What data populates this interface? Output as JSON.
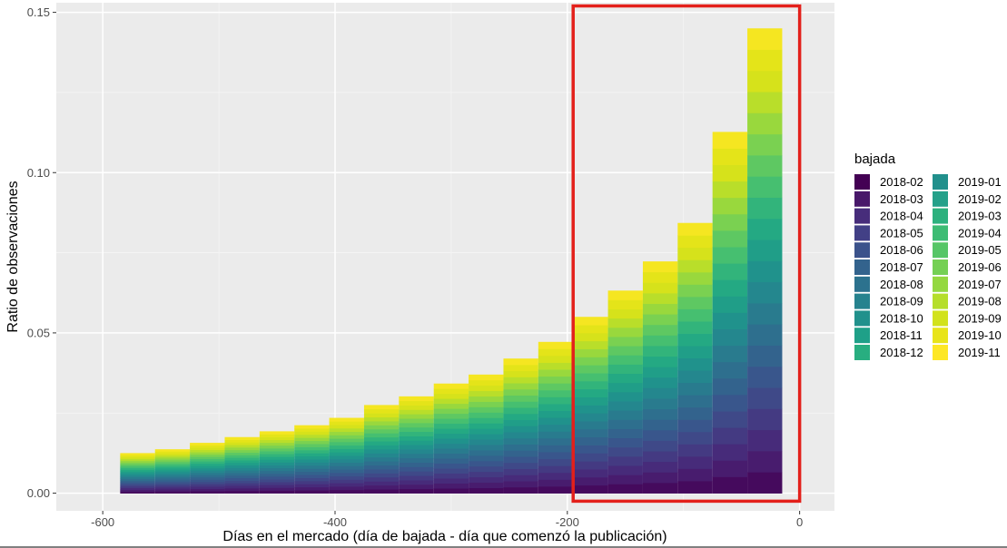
{
  "chart_data": {
    "type": "bar",
    "stacked": true,
    "xlabel": "Días en el mercado (día de bajada - día que comenzó la publicación)",
    "ylabel": "Ratio de observaciones",
    "xlim": [
      -640,
      30
    ],
    "ylim": [
      -0.0055,
      0.153
    ],
    "x_ticks": [
      -600,
      -400,
      -200,
      0
    ],
    "x_tick_labels": [
      "-600",
      "-400",
      "-200",
      "0"
    ],
    "y_ticks": [
      0.0,
      0.05,
      0.1,
      0.15
    ],
    "y_tick_labels": [
      "0.00",
      "0.05",
      "0.10",
      "0.15"
    ],
    "grid": true,
    "legend_title": "bajada",
    "legend_position": "right",
    "bin_width": 30,
    "bin_centers": [
      -570,
      -540,
      -510,
      -480,
      -450,
      -420,
      -390,
      -360,
      -330,
      -300,
      -270,
      -240,
      -210,
      -180,
      -150,
      -120,
      -90,
      -60,
      -30
    ],
    "totals": [
      0.0125,
      0.0137,
      0.0157,
      0.0175,
      0.0193,
      0.0212,
      0.0235,
      0.0275,
      0.0302,
      0.0342,
      0.037,
      0.042,
      0.0472,
      0.055,
      0.0632,
      0.0723,
      0.0843,
      0.1127,
      0.145
    ],
    "series_colors": [
      "#440154",
      "#481A6C",
      "#472F7D",
      "#414487",
      "#39568C",
      "#31688E",
      "#2A788E",
      "#23888E",
      "#1F988B",
      "#22A884",
      "#35B779",
      "#54C568",
      "#7AD151",
      "#A5DB36",
      "#D2E21B",
      "#E6E419",
      "#FDE725"
    ],
    "series": [
      {
        "name": "2018-02",
        "color": "#440154"
      },
      {
        "name": "2018-03",
        "color": "#471164"
      },
      {
        "name": "2018-04",
        "color": "#481F70"
      },
      {
        "name": "2018-05",
        "color": "#472D7B"
      },
      {
        "name": "2018-06",
        "color": "#443A83"
      },
      {
        "name": "2018-07",
        "color": "#404688"
      },
      {
        "name": "2018-08",
        "color": "#3B528B"
      },
      {
        "name": "2018-09",
        "color": "#365D8D"
      },
      {
        "name": "2018-10",
        "color": "#31688E"
      },
      {
        "name": "2018-11",
        "color": "#2C728E"
      },
      {
        "name": "2018-12",
        "color": "#287C8E"
      },
      {
        "name": "2019-01",
        "color": "#24868E"
      },
      {
        "name": "2019-02",
        "color": "#21908C"
      },
      {
        "name": "2019-03",
        "color": "#1F9A8A"
      },
      {
        "name": "2019-04",
        "color": "#20A486"
      },
      {
        "name": "2019-05",
        "color": "#27AD81"
      },
      {
        "name": "2019-06",
        "color": "#35B779"
      },
      {
        "name": "2019-07",
        "color": "#47C16E"
      },
      {
        "name": "2019-08",
        "color": "#5DC863"
      },
      {
        "name": "2019-09",
        "color": "#75D054"
      },
      {
        "name": "2019-10",
        "color": "#8FD744"
      },
      {
        "name": "2019-11",
        "color": "#FDE725"
      }
    ],
    "legend_colors": {
      "2018-02": "#440154",
      "2018-03": "#48186A",
      "2018-04": "#472D7B",
      "2018-05": "#424086",
      "2018-06": "#3B528B",
      "2018-07": "#33638D",
      "2018-08": "#2C728E",
      "2018-09": "#26828E",
      "2018-10": "#21918C",
      "2018-11": "#1FA088",
      "2018-12": "#28AE80",
      "2019-01": "#21908C",
      "2019-02": "#25A18A",
      "2019-03": "#2DB17E",
      "2019-04": "#3DBC74",
      "2019-05": "#56C667",
      "2019-06": "#75D054",
      "2019-07": "#94D840",
      "2019-08": "#B5DE2B",
      "2019-09": "#D2E21B",
      "2019-10": "#E8E419",
      "2019-11": "#FDE725"
    },
    "highlight_box": {
      "x0": -195,
      "x1": 0,
      "y0": -0.0025,
      "y1": 0.152,
      "color": "#E3201B"
    }
  }
}
